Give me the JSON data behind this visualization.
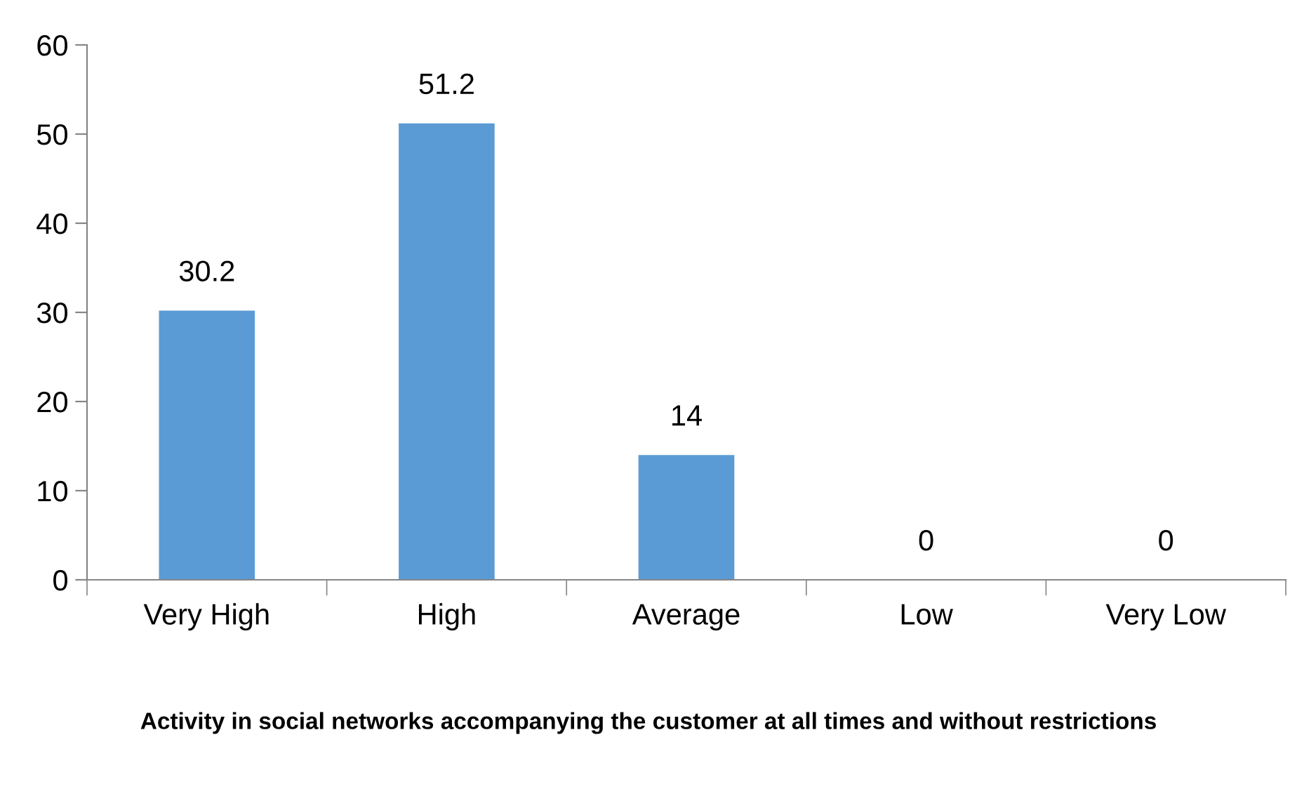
{
  "chart_data": {
    "type": "bar",
    "title": "Activity in social networks accompanying the customer at all times and without restrictions",
    "categories": [
      "Very High",
      "High",
      "Average",
      "Low",
      "Very Low"
    ],
    "values": [
      30.2,
      51.2,
      14,
      0,
      0
    ],
    "color": "#5b9bd5",
    "ylim": [
      0,
      60
    ],
    "yticks": [
      0,
      10,
      20,
      30,
      40,
      50,
      60
    ],
    "grid": false,
    "data_labels": true
  }
}
